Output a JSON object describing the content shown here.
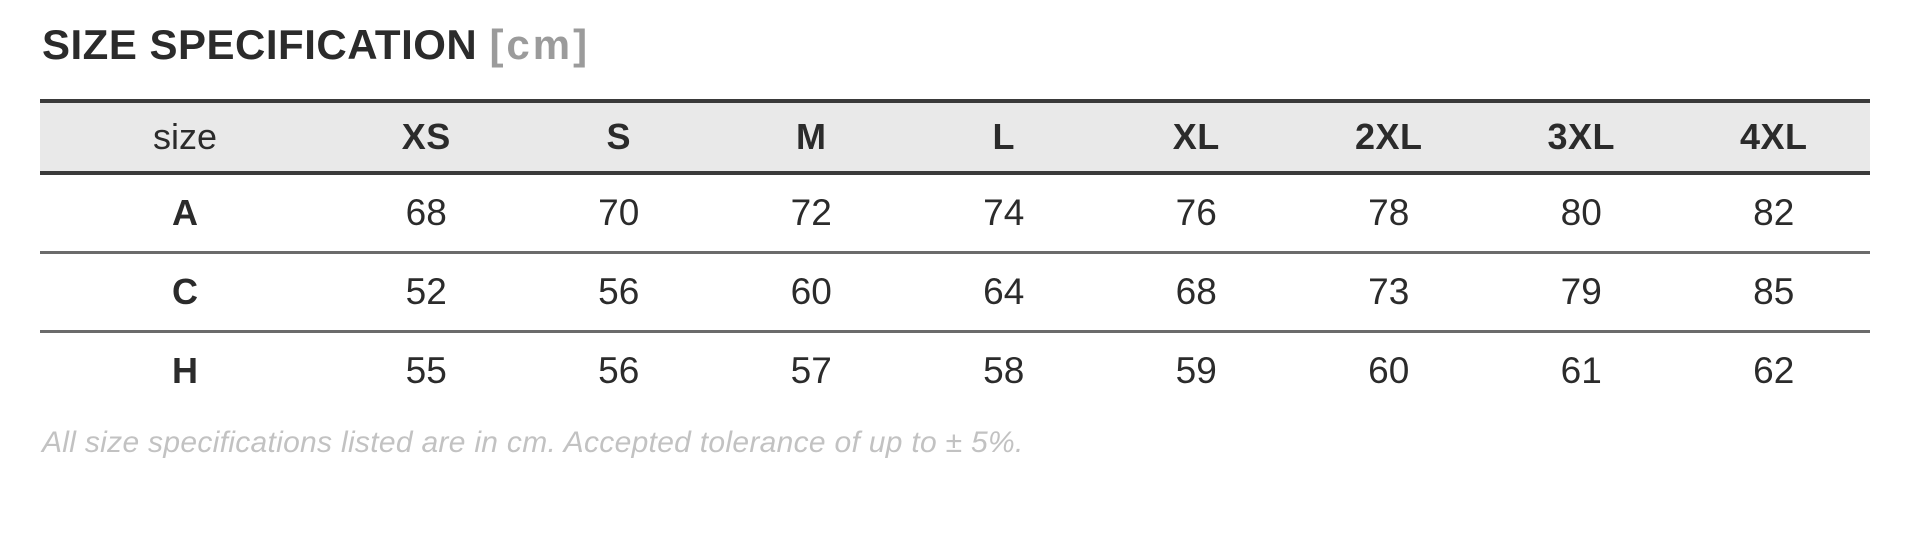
{
  "page": {
    "title": "SIZE SPECIFICATION",
    "title_unit": "[cm]",
    "note": "All size specifications listed are in cm. Accepted tolerance of up to ± 5%."
  },
  "colors": {
    "text": "#2b2b2b",
    "header_bg": "#e9e9e9",
    "header_border": "#3a3a3a",
    "row_border": "#6b6b6b",
    "unit_gray": "#9b9b9b",
    "note_gray": "#c2c2c2"
  },
  "chart_data": {
    "type": "table",
    "title": "SIZE SPECIFICATION [cm]",
    "columns": [
      "size",
      "XS",
      "S",
      "M",
      "L",
      "XL",
      "2XL",
      "3XL",
      "4XL"
    ],
    "rows": [
      [
        "A",
        68,
        70,
        72,
        74,
        76,
        78,
        80,
        82
      ],
      [
        "C",
        52,
        56,
        60,
        64,
        68,
        73,
        79,
        85
      ],
      [
        "H",
        55,
        56,
        57,
        58,
        59,
        60,
        61,
        62
      ]
    ],
    "footnote": "All size specifications listed are in cm. Accepted tolerance of up to ± 5%."
  }
}
